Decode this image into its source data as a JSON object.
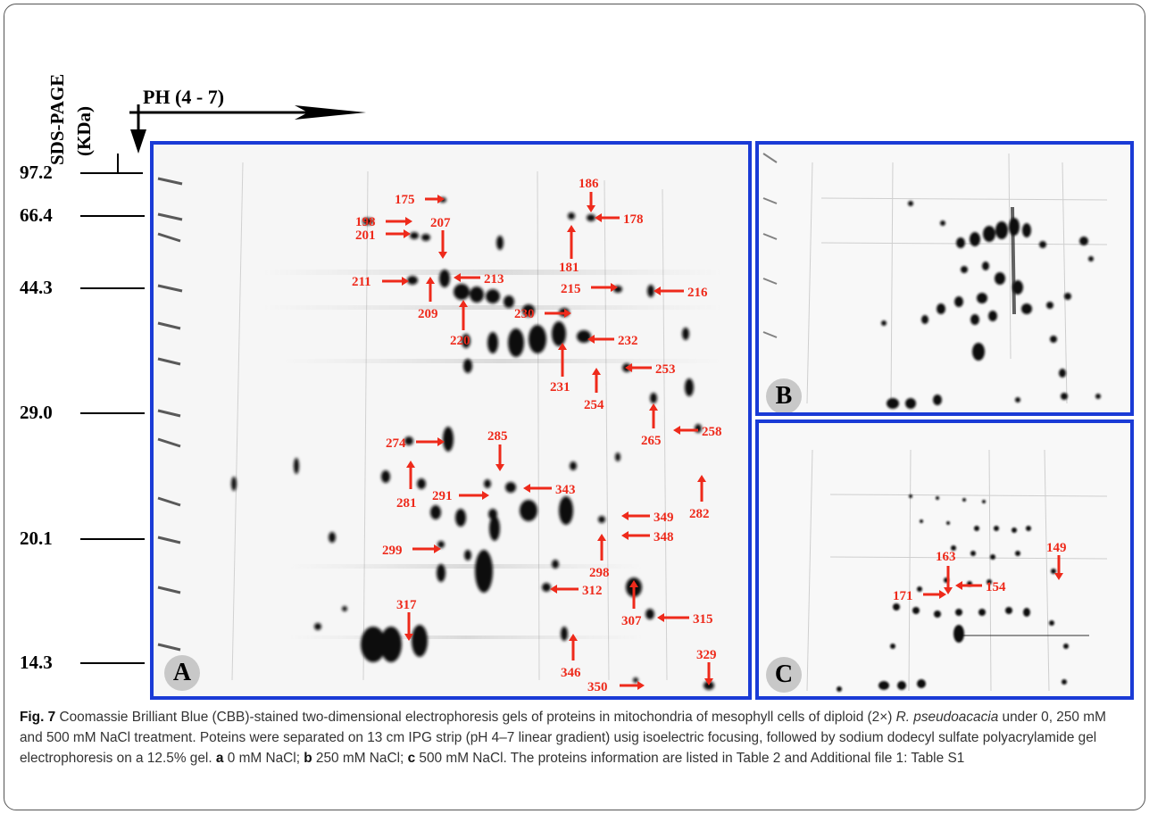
{
  "axes": {
    "y_title": "SDS-PAGE",
    "y_unit": "(KDa)",
    "x_title": "PH (4 - 7)",
    "mw_markers": [
      "97.2",
      "66.4",
      "44.3",
      "29.0",
      "20.1",
      "14.3"
    ]
  },
  "panels": {
    "a": {
      "badge": "A"
    },
    "b": {
      "badge": "B"
    },
    "c": {
      "badge": "C"
    }
  },
  "spot_labels_a": [
    "175",
    "186",
    "178",
    "198",
    "207",
    "201",
    "181",
    "211",
    "213",
    "215",
    "216",
    "209",
    "220",
    "230",
    "232",
    "231",
    "253",
    "254",
    "265",
    "258",
    "274",
    "285",
    "281",
    "291",
    "343",
    "282",
    "349",
    "299",
    "348",
    "298",
    "312",
    "307",
    "317",
    "315",
    "329",
    "346",
    "350"
  ],
  "spot_labels_c": [
    "163",
    "149",
    "171",
    "154"
  ],
  "colors": {
    "panel_border": "#1a3bd6",
    "label_red": "#ee2a1b"
  },
  "caption": {
    "fig_label": "Fig. 7",
    "text1": " Coomassie Brilliant Blue (CBB)-stained two-dimensional electrophoresis gels of proteins in mitochondria of mesophyll cells of diploid (2×) ",
    "species": "R. pseudoacacia",
    "text2": " under 0, 250 mM and 500 mM NaCl treatment. Poteins were separated on 13 cm IPG strip (pH 4–7 linear gradient) usig isoelectric focusing, followed by sodium dodecyl sulfate polyacrylamide gel electrophoresis on a 12.5% gel. ",
    "a_key": "a",
    "a_text": " 0 mM NaCl; ",
    "b_key": "b",
    "b_text": " 250 mM NaCl; ",
    "c_key": "c",
    "c_text": " 500 mM NaCl. The proteins information are listed in Table 2 and Additional file 1: Table S1"
  }
}
